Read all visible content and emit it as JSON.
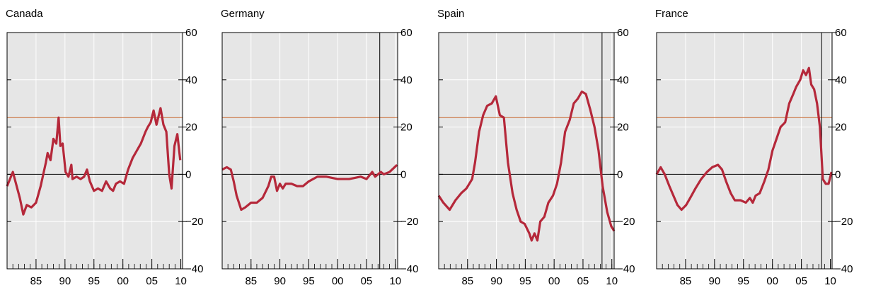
{
  "chart_data": [
    {
      "type": "line",
      "title": "Canada",
      "color": "#b5283a",
      "background": "#e6e6e6",
      "grid": true,
      "reference_line": {
        "value": 24,
        "color": "#c8642a"
      },
      "xlim": [
        1980,
        2010.3
      ],
      "ylim": [
        -40,
        60
      ],
      "xticks": [
        {
          "value": 1985,
          "label": "85"
        },
        {
          "value": 1990,
          "label": "90"
        },
        {
          "value": 1995,
          "label": "95"
        },
        {
          "value": 2000,
          "label": "00"
        },
        {
          "value": 2005,
          "label": "05"
        },
        {
          "value": 2010,
          "label": "10"
        }
      ],
      "yticks": [
        {
          "value": -40,
          "label": "−40"
        },
        {
          "value": -20,
          "label": "−20"
        },
        0,
        20,
        40,
        60
      ],
      "x": [
        1980,
        1981,
        1982.2,
        1982.8,
        1983.4,
        1984.2,
        1985,
        1985.8,
        1986.7,
        1987,
        1987.5,
        1988,
        1988.5,
        1988.9,
        1989.2,
        1989.6,
        1990.1,
        1990.6,
        1991.1,
        1991.3,
        1992,
        1992.7,
        1993.3,
        1993.8,
        1994.3,
        1995,
        1995.7,
        1996.4,
        1997.1,
        1997.8,
        1998.3,
        1998.8,
        1999.5,
        2000.2,
        2000.9,
        2001.7,
        2002.4,
        2003.1,
        2003.9,
        2004.3,
        2004.8,
        2005.3,
        2005.8,
        2006.5,
        2007,
        2007.5,
        2008,
        2008.4,
        2008.9,
        2009.4,
        2009.9
      ],
      "values": [
        -5,
        1,
        -10,
        -17,
        -13,
        -14,
        -12,
        -5,
        5,
        9,
        6,
        15,
        13,
        24,
        12,
        13,
        1,
        -1,
        4,
        -2,
        -1,
        -2,
        -1,
        2,
        -3,
        -7,
        -6,
        -7,
        -3,
        -6,
        -7,
        -4,
        -3,
        -4,
        2,
        7,
        10,
        13,
        18,
        20,
        22,
        27,
        21,
        28,
        21,
        18,
        0,
        -6,
        12,
        17,
        6
      ]
    },
    {
      "type": "line",
      "title": "Germany",
      "color": "#b5283a",
      "background": "#e6e6e6",
      "grid": true,
      "reference_line": {
        "value": 24,
        "color": "#c8642a"
      },
      "vline": 2007.3,
      "xlim": [
        1980,
        2010.4
      ],
      "ylim": [
        -40,
        60
      ],
      "xticks": [
        {
          "value": 1985,
          "label": "85"
        },
        {
          "value": 1990,
          "label": "90"
        },
        {
          "value": 1995,
          "label": "95"
        },
        {
          "value": 2000,
          "label": "00"
        },
        {
          "value": 2005,
          "label": "05"
        },
        {
          "value": 2010,
          "label": "10"
        }
      ],
      "yticks": [
        {
          "value": -40,
          "label": "−40"
        },
        {
          "value": -20,
          "label": "−20"
        },
        0,
        20,
        40,
        60
      ],
      "x": [
        1980,
        1980.8,
        1981.5,
        1982,
        1982.5,
        1983.3,
        1984,
        1985,
        1986,
        1987,
        1988,
        1988.5,
        1989,
        1989.5,
        1990,
        1990.5,
        1991,
        1992,
        1993,
        1994,
        1995,
        1996.5,
        1998,
        2000,
        2002,
        2003,
        2004,
        2005,
        2006,
        2006.5,
        2007.5,
        2008,
        2009,
        2010.3
      ],
      "values": [
        2,
        3,
        2,
        -3,
        -9,
        -15,
        -14,
        -12,
        -12,
        -10,
        -5,
        -1,
        -1,
        -7,
        -4,
        -6,
        -4,
        -4,
        -5,
        -5,
        -3,
        -1,
        -1,
        -2,
        -2,
        -1.5,
        -1,
        -2,
        1,
        -1,
        1,
        0,
        1,
        4
      ]
    },
    {
      "type": "line",
      "title": "Spain",
      "color": "#b5283a",
      "background": "#e6e6e6",
      "grid": true,
      "reference_line": {
        "value": 24,
        "color": "#c8642a"
      },
      "vline": 2008.3,
      "xlim": [
        1980,
        2010.4
      ],
      "ylim": [
        -40,
        60
      ],
      "xticks": [
        {
          "value": 1985,
          "label": "85"
        },
        {
          "value": 1990,
          "label": "90"
        },
        {
          "value": 1995,
          "label": "95"
        },
        {
          "value": 2000,
          "label": "00"
        },
        {
          "value": 2005,
          "label": "05"
        },
        {
          "value": 2010,
          "label": "10"
        }
      ],
      "yticks": [
        {
          "value": -40,
          "label": "−40"
        },
        {
          "value": -20,
          "label": "−20"
        },
        0,
        20,
        40,
        60
      ],
      "x": [
        1980,
        1980.8,
        1981.9,
        1982.9,
        1983.9,
        1984.8,
        1985.8,
        1986.3,
        1987,
        1987.7,
        1988.4,
        1989.2,
        1989.9,
        1990.6,
        1991.3,
        1992,
        1992.8,
        1993.5,
        1994.2,
        1994.9,
        1995.7,
        1996.1,
        1996.6,
        1997.1,
        1997.6,
        1998.3,
        1999,
        1999.8,
        2000.5,
        2001.2,
        2001.9,
        2002.7,
        2003.4,
        2004.1,
        2004.8,
        2005.5,
        2006.3,
        2007,
        2007.7,
        2008.4,
        2009.2,
        2009.9,
        2010.4
      ],
      "values": [
        -9,
        -12,
        -15,
        -11,
        -8,
        -6,
        -2,
        5,
        18,
        25,
        29,
        30,
        33,
        25,
        24,
        5,
        -8,
        -15,
        -20,
        -21,
        -25,
        -28,
        -25,
        -28,
        -20,
        -18,
        -12,
        -9,
        -4,
        5,
        18,
        23,
        30,
        32,
        35,
        34,
        27,
        20,
        10,
        -5,
        -16,
        -22,
        -24
      ]
    },
    {
      "type": "line",
      "title": "France",
      "color": "#b5283a",
      "background": "#e6e6e6",
      "grid": true,
      "reference_line": {
        "value": 24,
        "color": "#c8642a"
      },
      "vline": 2008.5,
      "xlim": [
        1980,
        2010.3
      ],
      "ylim": [
        -40,
        60
      ],
      "xticks": [
        {
          "value": 1985,
          "label": "85"
        },
        {
          "value": 1990,
          "label": "90"
        },
        {
          "value": 1995,
          "label": "95"
        },
        {
          "value": 2000,
          "label": "00"
        },
        {
          "value": 2005,
          "label": "05"
        },
        {
          "value": 2010,
          "label": "10"
        }
      ],
      "yticks": [
        {
          "value": -40,
          "label": "−40"
        },
        {
          "value": -20,
          "label": "−20"
        },
        0,
        20,
        40,
        60
      ],
      "x": [
        1980,
        1980.7,
        1981.4,
        1982.2,
        1982.9,
        1983.6,
        1984.3,
        1985.1,
        1985.8,
        1986.7,
        1987.7,
        1988.7,
        1989.6,
        1990.6,
        1991.3,
        1992,
        1992.8,
        1993.5,
        1994.5,
        1995.4,
        1996.1,
        1996.6,
        1997.1,
        1997.8,
        1998.6,
        1999.3,
        2000,
        2000.7,
        2001.4,
        2002.2,
        2002.9,
        2003.6,
        2004.1,
        2004.8,
        2005.3,
        2005.8,
        2006.3,
        2006.7,
        2007.2,
        2007.7,
        2008.2,
        2008.7,
        2009.2,
        2009.7,
        2010.2
      ],
      "values": [
        0,
        3,
        0,
        -5,
        -9,
        -13,
        -15,
        -13,
        -10,
        -6,
        -2,
        1,
        3,
        4,
        2,
        -3,
        -8,
        -11,
        -11,
        -12,
        -10,
        -12,
        -9,
        -8,
        -3,
        2,
        10,
        15,
        20,
        22,
        30,
        34,
        37,
        40,
        44,
        42,
        45,
        38,
        36,
        30,
        20,
        -2,
        -4,
        -4,
        1
      ]
    }
  ]
}
